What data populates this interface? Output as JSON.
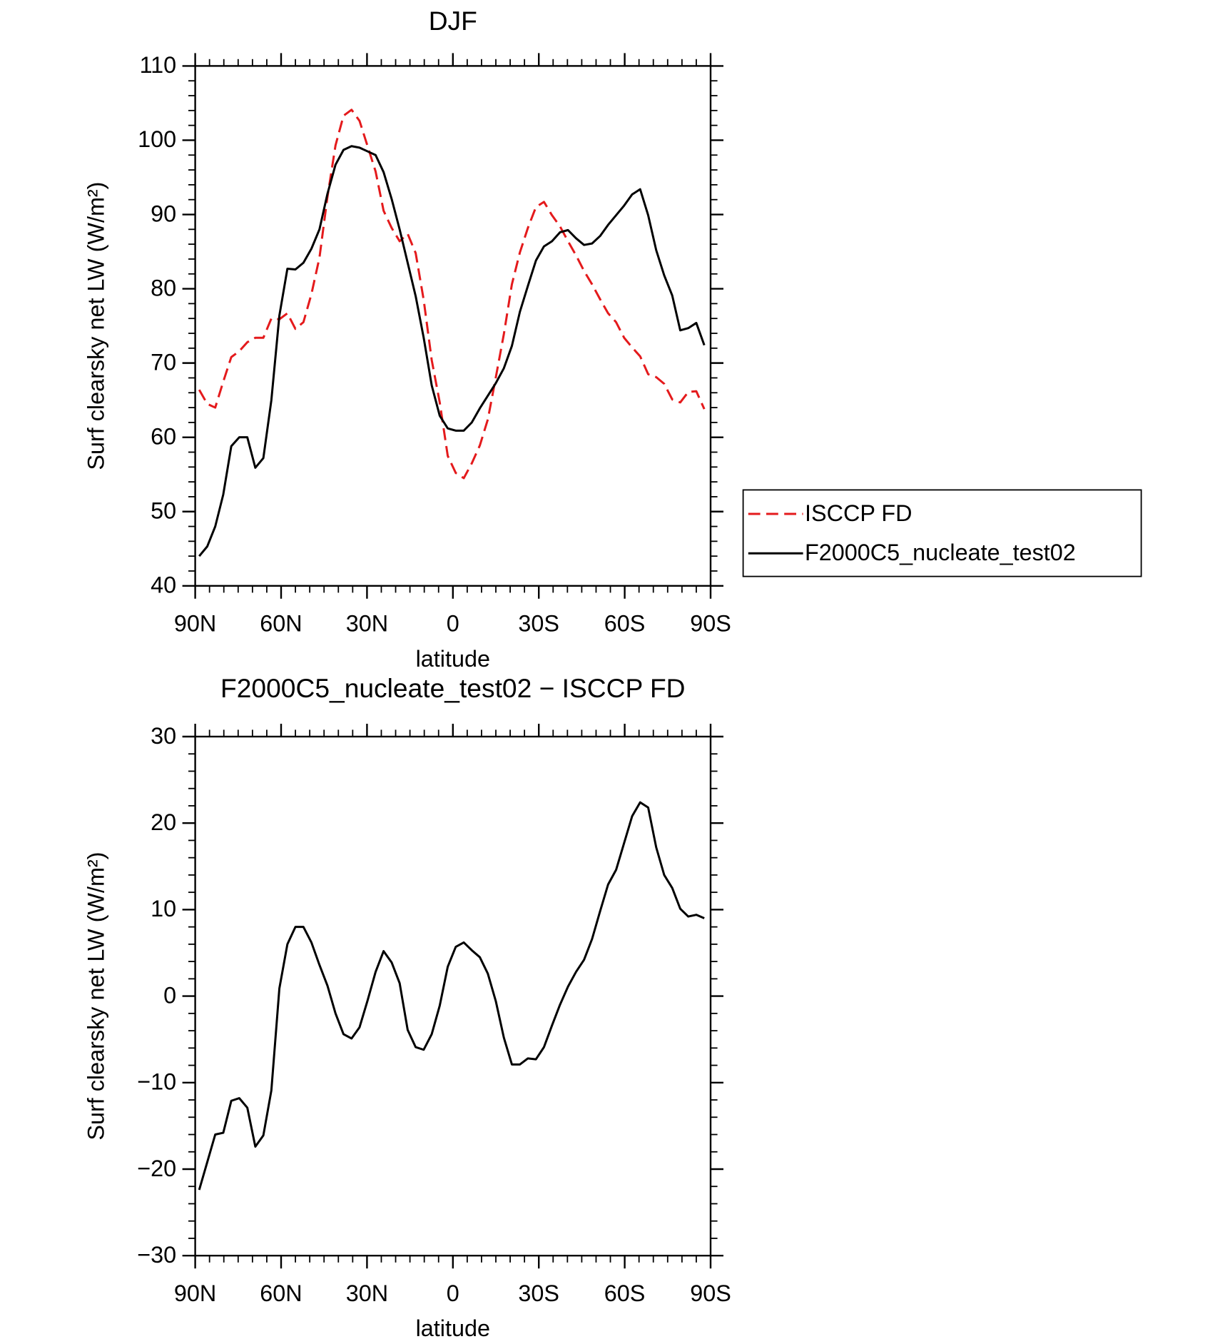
{
  "chart_data": [
    {
      "type": "line",
      "title": "DJF",
      "xlabel": "latitude",
      "ylabel": "Surf clearsky net LW (W/m²)",
      "x": [
        88.6,
        85.8,
        83.0,
        80.2,
        77.4,
        74.6,
        71.8,
        69.0,
        66.2,
        63.4,
        60.6,
        57.8,
        55.0,
        52.2,
        49.4,
        46.6,
        43.8,
        41.0,
        38.2,
        35.4,
        32.6,
        29.8,
        27.0,
        24.2,
        21.4,
        18.6,
        15.8,
        13.0,
        10.2,
        7.4,
        4.6,
        1.8,
        -1.0,
        -3.8,
        -6.6,
        -9.4,
        -12.2,
        -15.0,
        -17.8,
        -20.6,
        -23.4,
        -26.2,
        -29.0,
        -31.8,
        -34.6,
        -37.4,
        -40.2,
        -43.0,
        -45.8,
        -48.6,
        -51.4,
        -54.2,
        -57.0,
        -59.8,
        -62.6,
        -65.4,
        -68.2,
        -71.0,
        -73.8,
        -76.6,
        -79.4,
        -82.2,
        -85.0,
        -87.8
      ],
      "xlim": [
        90,
        -90
      ],
      "xticks": [
        {
          "value": 90,
          "label": "90N"
        },
        {
          "value": 60,
          "label": "60N"
        },
        {
          "value": 30,
          "label": "30N"
        },
        0,
        {
          "value": -30,
          "label": "30S"
        },
        {
          "value": -60,
          "label": "60S"
        },
        {
          "value": -90,
          "label": "90S"
        }
      ],
      "ylim": [
        40,
        110
      ],
      "yticks": [
        40,
        50,
        60,
        70,
        80,
        90,
        100,
        110
      ],
      "legend": "right",
      "series": [
        {
          "name": "ISCCP FD",
          "color": "#e41a1c",
          "linestyle": "dashed",
          "values": [
            66.4,
            64.5,
            64.0,
            67.5,
            70.8,
            71.6,
            72.8,
            73.4,
            73.4,
            76.0,
            75.9,
            76.7,
            74.6,
            75.5,
            79.3,
            84.2,
            92.4,
            99.3,
            103.3,
            104.1,
            102.6,
            99.2,
            95.8,
            90.5,
            88.2,
            86.4,
            87.4,
            84.8,
            78.5,
            70.4,
            64.7,
            57.5,
            55.2,
            54.5,
            56.5,
            58.9,
            62.4,
            68.1,
            73.9,
            80.6,
            84.9,
            88.2,
            91.0,
            91.7,
            89.9,
            88.4,
            86.4,
            84.5,
            82.4,
            80.6,
            78.6,
            76.7,
            75.5,
            73.4,
            72.1,
            70.9,
            68.5,
            68.1,
            67.2,
            65.1,
            64.7,
            66.1,
            66.2,
            63.8
          ]
        },
        {
          "name": "F2000C5_nucleate_test02",
          "color": "#000000",
          "linestyle": "solid",
          "values": [
            44.0,
            45.3,
            48.0,
            52.3,
            58.8,
            60.0,
            60.0,
            55.9,
            57.2,
            65.0,
            76.4,
            82.7,
            82.6,
            83.5,
            85.4,
            88.0,
            92.8,
            96.7,
            98.7,
            99.2,
            99.0,
            98.5,
            98.0,
            95.7,
            92.1,
            88.0,
            83.5,
            79.0,
            73.4,
            67.0,
            62.9,
            61.2,
            60.9,
            60.9,
            62.0,
            63.9,
            65.6,
            67.3,
            69.3,
            72.3,
            76.9,
            80.4,
            83.8,
            85.7,
            86.4,
            87.6,
            87.9,
            86.8,
            85.9,
            86.1,
            87.1,
            88.6,
            89.9,
            91.2,
            92.7,
            93.4,
            89.9,
            85.2,
            81.8,
            79.1,
            74.4,
            74.7,
            75.4,
            72.4
          ]
        }
      ]
    },
    {
      "type": "line",
      "title": "F2000C5_nucleate_test02 − ISCCP FD",
      "xlabel": "latitude",
      "ylabel": "Surf clearsky net LW (W/m²)",
      "x": [
        88.6,
        85.8,
        83.0,
        80.2,
        77.4,
        74.6,
        71.8,
        69.0,
        66.2,
        63.4,
        60.6,
        57.8,
        55.0,
        52.2,
        49.4,
        46.6,
        43.8,
        41.0,
        38.2,
        35.4,
        32.6,
        29.8,
        27.0,
        24.2,
        21.4,
        18.6,
        15.8,
        13.0,
        10.2,
        7.4,
        4.6,
        1.8,
        -1.0,
        -3.8,
        -6.6,
        -9.4,
        -12.2,
        -15.0,
        -17.8,
        -20.6,
        -23.4,
        -26.2,
        -29.0,
        -31.8,
        -34.6,
        -37.4,
        -40.2,
        -43.0,
        -45.8,
        -48.6,
        -51.4,
        -54.2,
        -57.0,
        -59.8,
        -62.6,
        -65.4,
        -68.2,
        -71.0,
        -73.8,
        -76.6,
        -79.4,
        -82.2,
        -85.0,
        -87.8
      ],
      "xlim": [
        90,
        -90
      ],
      "xticks": [
        {
          "value": 90,
          "label": "90N"
        },
        {
          "value": 60,
          "label": "60N"
        },
        {
          "value": 30,
          "label": "30N"
        },
        0,
        {
          "value": -30,
          "label": "30S"
        },
        {
          "value": -60,
          "label": "60S"
        },
        {
          "value": -90,
          "label": "90S"
        }
      ],
      "ylim": [
        -30,
        30
      ],
      "yticks": [
        {
          "value": -30,
          "label": "−30"
        },
        {
          "value": -20,
          "label": "−20"
        },
        {
          "value": -10,
          "label": "−10"
        },
        0,
        10,
        20,
        30
      ],
      "series": [
        {
          "color": "#000000",
          "linestyle": "solid",
          "values": [
            -22.4,
            -19.2,
            -16.0,
            -15.8,
            -12.1,
            -11.8,
            -12.9,
            -17.4,
            -16.1,
            -10.9,
            0.9,
            6.0,
            8.0,
            8.0,
            6.2,
            3.6,
            1.2,
            -2.0,
            -4.4,
            -4.9,
            -3.6,
            -0.5,
            2.8,
            5.2,
            3.9,
            1.5,
            -3.9,
            -5.9,
            -6.2,
            -4.4,
            -1.1,
            3.4,
            5.7,
            6.2,
            5.3,
            4.5,
            2.6,
            -0.6,
            -4.8,
            -7.9,
            -7.9,
            -7.2,
            -7.3,
            -5.9,
            -3.4,
            -1.0,
            1.1,
            2.8,
            4.2,
            6.6,
            9.8,
            12.9,
            14.6,
            17.7,
            20.8,
            22.4,
            21.8,
            17.2,
            14.0,
            12.5,
            10.1,
            9.2,
            9.4,
            9.0
          ]
        }
      ]
    }
  ]
}
